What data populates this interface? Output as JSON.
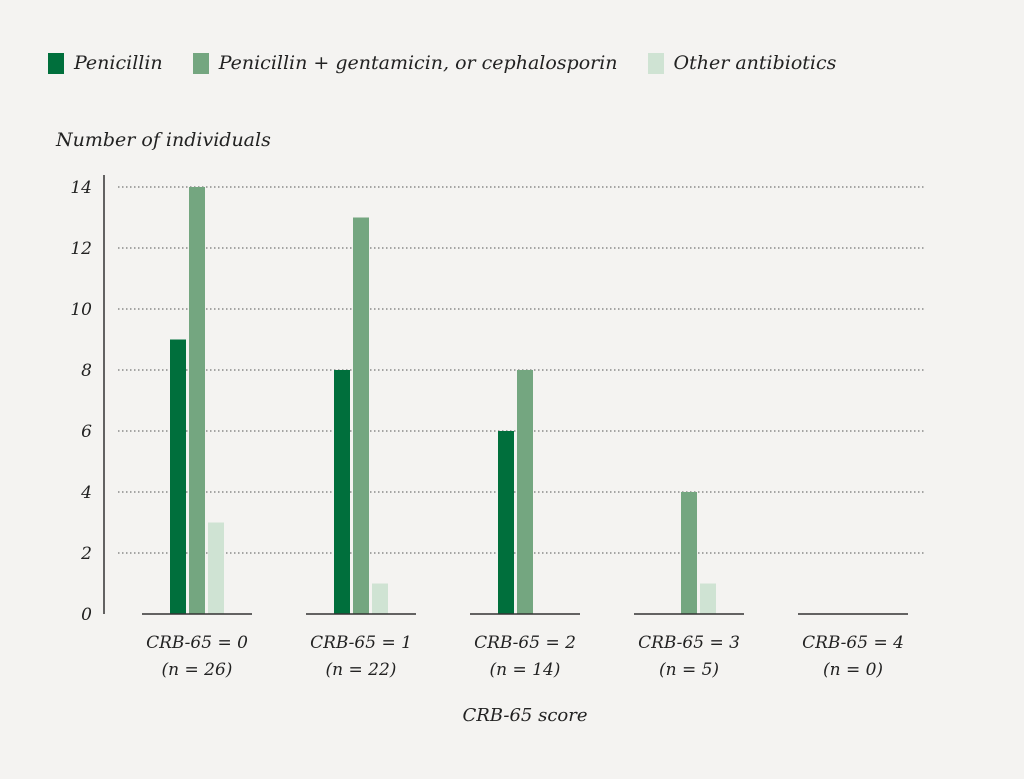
{
  "chart_data": {
    "type": "bar",
    "title": "",
    "ylabel": "Number of individuals",
    "xlabel": "CRB-65 score",
    "ylim": [
      0,
      14
    ],
    "yticks": [
      0,
      2,
      4,
      6,
      8,
      10,
      12,
      14
    ],
    "grid": "horizontal dotted",
    "legend_placement": "top-left",
    "categories": [
      "CRB-65 = 0",
      "CRB-65 = 1",
      "CRB-65 = 2",
      "CRB-65 = 3",
      "CRB-65 = 4"
    ],
    "category_n": [
      "(n = 26)",
      "(n = 22)",
      "(n = 14)",
      "(n = 5)",
      "(n = 0)"
    ],
    "series": [
      {
        "name": "Penicillin",
        "color": "#006f3c",
        "values": [
          9,
          8,
          6,
          0,
          0
        ]
      },
      {
        "name": "Penicillin + gentamicin, or cephalosporin",
        "color": "#74a680",
        "values": [
          14,
          13,
          8,
          4,
          0
        ]
      },
      {
        "name": "Other antibiotics",
        "color": "#cfe3d3",
        "values": [
          3,
          1,
          0,
          1,
          0
        ]
      }
    ]
  }
}
